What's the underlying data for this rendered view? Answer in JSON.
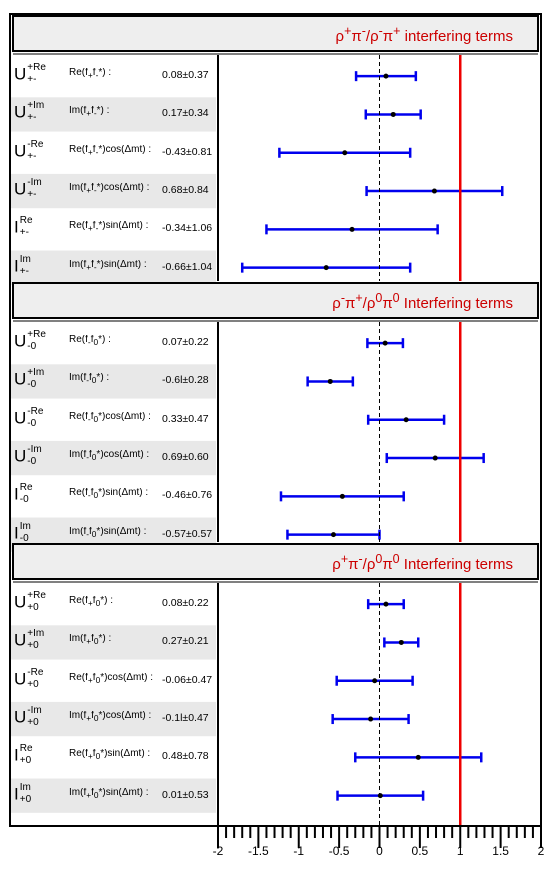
{
  "chart_data": {
    "type": "scatter",
    "title": "",
    "xlabel": "",
    "ylabel": "",
    "xlim": [
      -2,
      2
    ],
    "xticks": [
      "-2",
      "-1.5",
      "-1",
      "-0.5",
      "0",
      "0.5",
      "1",
      "1.5",
      "2"
    ],
    "dashed_reference_x": 0,
    "red_reference_x": 1,
    "colors": {
      "error_bar": "#0000ee",
      "point": "#000000",
      "reference_line": "#ee0000",
      "title_text": "#cc0000",
      "row_shade": "#e8e8e8"
    },
    "panels": [
      {
        "title_html": "ρ<sup>+</sup>π<sup>-</sup>/ρ<sup>-</sup>π<sup>+</sup> interfering terms",
        "rows": [
          {
            "sym": "U",
            "sup": "+Re",
            "sub": "+-",
            "formula_html": "Re(f<sub>+</sub>f<sub>-</sub>*) :",
            "value_text": "0.08±0.37",
            "value": 0.08,
            "error": 0.37
          },
          {
            "sym": "U",
            "sup": "+Im",
            "sub": "+-",
            "formula_html": "Im(f<sub>+</sub>f<sub>-</sub>*) :",
            "value_text": "0.17±0.34",
            "value": 0.17,
            "error": 0.34
          },
          {
            "sym": "U",
            "sup": "-Re",
            "sub": "+-",
            "formula_html": "Re(f<sub>+</sub>f<sub>-</sub>*)cos(Δmt) :",
            "value_text": "-0.43±0.81",
            "value": -0.43,
            "error": 0.81
          },
          {
            "sym": "U",
            "sup": "-Im",
            "sub": "+-",
            "formula_html": "Im(f<sub>+</sub>f<sub>-</sub>*)cos(Δmt) :",
            "value_text": "0.68±0.84",
            "value": 0.68,
            "error": 0.84
          },
          {
            "sym": "I",
            "sup": "Re",
            "sub": "+-",
            "formula_html": "Re(f<sub>+</sub>f<sub>-</sub>*)sin(Δmt) :",
            "value_text": "-0.34±1.06",
            "value": -0.34,
            "error": 1.06
          },
          {
            "sym": "I",
            "sup": "Im",
            "sub": "+-",
            "formula_html": "Im(f<sub>+</sub>f<sub>-</sub>*)sin(Δmt) :",
            "value_text": "-0.66±1.04",
            "value": -0.66,
            "error": 1.04
          }
        ]
      },
      {
        "title_html": "ρ<sup>-</sup>π<sup>+</sup>/ρ<sup>0</sup>π<sup>0</sup>  Interfering terms",
        "rows": [
          {
            "sym": "U",
            "sup": "+Re",
            "sub": "-0",
            "formula_html": "Re(f<sub>-</sub>f<sub>0</sub>*) :",
            "value_text": "0.07±0.22",
            "value": 0.07,
            "error": 0.22
          },
          {
            "sym": "U",
            "sup": "+Im",
            "sub": "-0",
            "formula_html": "Im(f<sub>-</sub>f<sub>0</sub>*) :",
            "value_text": "-0.6l±0.28",
            "value": -0.61,
            "error": 0.28
          },
          {
            "sym": "U",
            "sup": "-Re",
            "sub": "-0",
            "formula_html": "Re(f<sub>-</sub>f<sub>0</sub>*)cos(Δmt) :",
            "value_text": "0.33±0.47",
            "value": 0.33,
            "error": 0.47
          },
          {
            "sym": "U",
            "sup": "-Im",
            "sub": "-0",
            "formula_html": "Im(f<sub>-</sub>f<sub>0</sub>*)cos(Δmt) :",
            "value_text": "0.69±0.60",
            "value": 0.69,
            "error": 0.6
          },
          {
            "sym": "I",
            "sup": "Re",
            "sub": "-0",
            "formula_html": "Re(f<sub>-</sub>f<sub>0</sub>*)sin(Δmt) :",
            "value_text": "-0.46±0.76",
            "value": -0.46,
            "error": 0.76
          },
          {
            "sym": "I",
            "sup": "Im",
            "sub": "-0",
            "formula_html": "Im(f<sub>-</sub>f<sub>0</sub>*)sin(Δmt) :",
            "value_text": "-0.57±0.57",
            "value": -0.57,
            "error": 0.57
          }
        ]
      },
      {
        "title_html": "ρ<sup>+</sup>π<sup>-</sup>/ρ<sup>0</sup>π<sup>0</sup>  Interfering terms",
        "rows": [
          {
            "sym": "U",
            "sup": "+Re",
            "sub": "+0",
            "formula_html": "Re(f<sub>+</sub>f<sub>0</sub>*) :",
            "value_text": "0.08±0.22",
            "value": 0.08,
            "error": 0.22
          },
          {
            "sym": "U",
            "sup": "+Im",
            "sub": "+0",
            "formula_html": "Im(f<sub>+</sub>f<sub>0</sub>*) :",
            "value_text": "0.27±0.21",
            "value": 0.27,
            "error": 0.21
          },
          {
            "sym": "U",
            "sup": "-Re",
            "sub": "+0",
            "formula_html": "Re(f<sub>+</sub>f<sub>0</sub>*)cos(Δmt) :",
            "value_text": "-0.06±0.47",
            "value": -0.06,
            "error": 0.47
          },
          {
            "sym": "U",
            "sup": "-Im",
            "sub": "+0",
            "formula_html": "Im(f<sub>+</sub>f<sub>0</sub>*)cos(Δmt) :",
            "value_text": "-0.1l±0.47",
            "value": -0.11,
            "error": 0.47
          },
          {
            "sym": "I",
            "sup": "Re",
            "sub": "+0",
            "formula_html": "Re(f<sub>+</sub>f<sub>0</sub>*)sin(Δmt) :",
            "value_text": "0.48±0.78",
            "value": 0.48,
            "error": 0.78
          },
          {
            "sym": "I",
            "sup": "Im",
            "sub": "+0",
            "formula_html": "Im(f<sub>+</sub>f<sub>0</sub>*)sin(Δmt) :",
            "value_text": "0.01±0.53",
            "value": 0.01,
            "error": 0.53
          }
        ]
      }
    ]
  }
}
